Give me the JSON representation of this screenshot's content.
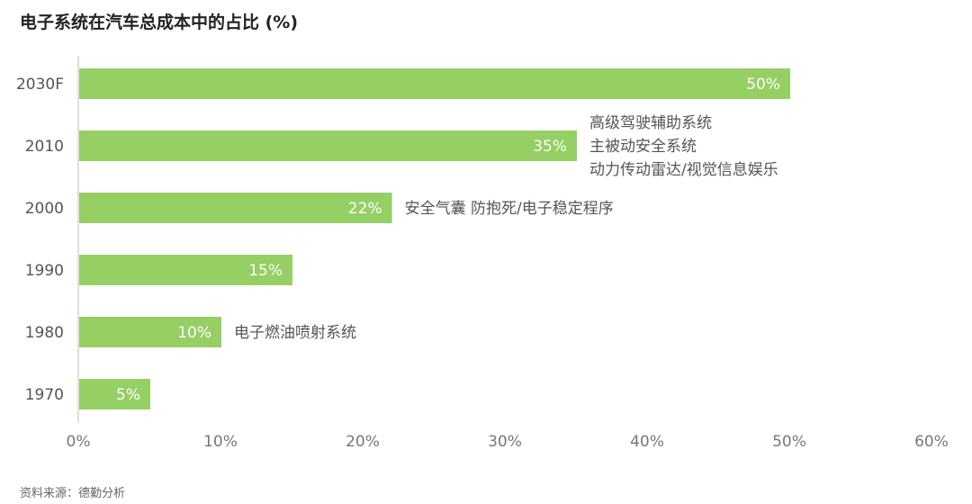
{
  "title": "电子系统在汽车总成本中的占比 (%)",
  "source": "资料来源：德勤分析",
  "colors": {
    "bar": "#96cf64",
    "axis": "#bfbfbf",
    "text": "#555555"
  },
  "chart_data": {
    "type": "bar",
    "orientation": "horizontal",
    "title": "电子系统在汽车总成本中的占比 (%)",
    "categories": [
      "2030F",
      "2010",
      "2000",
      "1990",
      "1980",
      "1970"
    ],
    "values": [
      50,
      35,
      22,
      15,
      10,
      5
    ],
    "value_labels": [
      "50%",
      "35%",
      "22%",
      "15%",
      "10%",
      "5%"
    ],
    "xlim": [
      0,
      60
    ],
    "xticks": [
      0,
      10,
      20,
      30,
      40,
      50,
      60
    ],
    "xtick_labels": [
      "0%",
      "10%",
      "20%",
      "30%",
      "40%",
      "50%",
      "60%"
    ],
    "grid": false,
    "annotations": [
      {
        "category": "2010",
        "lines": [
          "高级驾驶辅助系统",
          "主被动安全系统",
          "动力传动雷达/视觉信息娱乐"
        ]
      },
      {
        "category": "2000",
        "lines": [
          "安全气囊 防抱死/电子稳定程序"
        ]
      },
      {
        "category": "1980",
        "lines": [
          "电子燃油喷射系统"
        ]
      }
    ]
  }
}
